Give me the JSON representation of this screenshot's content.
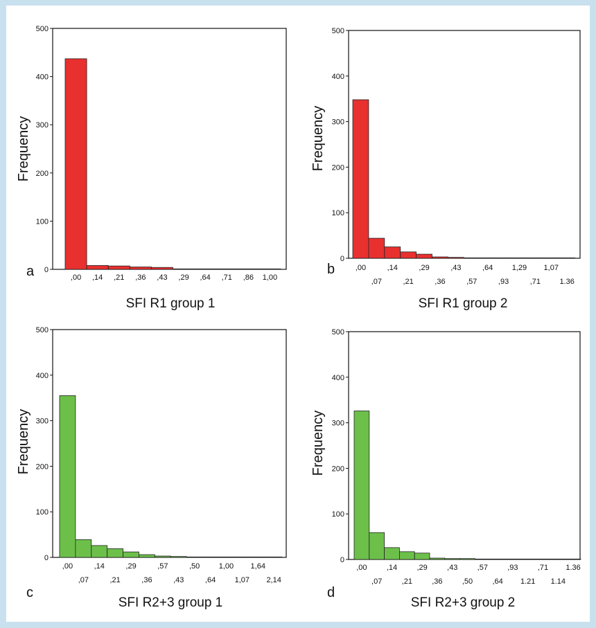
{
  "panels": [
    {
      "letter": "a",
      "ylabel": "Frequency",
      "xlabel": "SFI R1 group 1",
      "bar_color": "#e8302f",
      "tick_rows": 1,
      "y_ticks": [
        "0",
        "100",
        "200",
        "300",
        "400",
        "500"
      ],
      "x_tick_labels": [
        ",00",
        ",14",
        ",21",
        ",36",
        ",43",
        ",29",
        ",64",
        ",71",
        ",86",
        "1,00"
      ]
    },
    {
      "letter": "b",
      "ylabel": "Frequency",
      "xlabel": "SFI R1 group 2",
      "bar_color": "#e8302f",
      "tick_rows": 2,
      "y_ticks": [
        "0",
        "100",
        "200",
        "300",
        "400",
        "500"
      ],
      "x_tick_labels": [
        ",00",
        ",07",
        ",14",
        ",21",
        ",29",
        ",36",
        ",43",
        ",57",
        ",64",
        ",93",
        "1,29",
        ",71",
        "1,07",
        "1.36"
      ]
    },
    {
      "letter": "c",
      "ylabel": "Frequency",
      "xlabel": "SFI R2+3 group 1",
      "bar_color": "#6cc04a",
      "tick_rows": 2,
      "y_ticks": [
        "0",
        "100",
        "200",
        "300",
        "400",
        "500"
      ],
      "x_tick_labels": [
        ",00",
        ",07",
        ",14",
        ",21",
        ",29",
        ",36",
        ",57",
        ",43",
        ",50",
        ",64",
        "1,00",
        "1,07",
        "1,64",
        "2,14"
      ]
    },
    {
      "letter": "d",
      "ylabel": "Frequency",
      "xlabel": "SFI R2+3 group 2",
      "bar_color": "#6cc04a",
      "tick_rows": 2,
      "y_ticks": [
        "0",
        "100",
        "200",
        "300",
        "400",
        "500"
      ],
      "x_tick_labels": [
        ",00",
        ",07",
        ",14",
        ",21",
        ",29",
        ",36",
        ",43",
        ",50",
        ",57",
        ",64",
        ",93",
        "1.21",
        ",71",
        "1.14",
        "1.36"
      ]
    }
  ],
  "chart_data": [
    {
      "type": "bar",
      "categories": [
        ",00",
        ",14",
        ",21",
        ",36",
        ",43",
        ",29",
        ",64",
        ",71",
        ",86",
        "1,00"
      ],
      "values": [
        437,
        8,
        7,
        5,
        4,
        1,
        1,
        1,
        1,
        1
      ],
      "xlabel": "SFI R1 group 1",
      "ylabel": "Frequency",
      "ylim": [
        0,
        500
      ]
    },
    {
      "type": "bar",
      "categories": [
        ",00",
        ",07",
        ",14",
        ",21",
        ",29",
        ",36",
        ",43",
        ",57",
        ",64",
        ",93",
        "1,29",
        ",71",
        "1,07",
        "1.36"
      ],
      "values": [
        348,
        44,
        25,
        14,
        9,
        3,
        2,
        1,
        1,
        1,
        1,
        1,
        1,
        1
      ],
      "xlabel": "SFI R1 group 2",
      "ylabel": "Frequency",
      "ylim": [
        0,
        500
      ]
    },
    {
      "type": "bar",
      "categories": [
        ",00",
        ",07",
        ",14",
        ",21",
        ",29",
        ",36",
        ",57",
        ",43",
        ",50",
        ",64",
        "1,00",
        "1,07",
        "1,64",
        "2,14"
      ],
      "values": [
        355,
        39,
        26,
        19,
        12,
        6,
        3,
        2,
        1,
        1,
        1,
        1,
        1,
        1
      ],
      "xlabel": "SFI R2+3 group 1",
      "ylabel": "Frequency",
      "ylim": [
        0,
        500
      ]
    },
    {
      "type": "bar",
      "categories": [
        ",00",
        ",07",
        ",14",
        ",21",
        ",29",
        ",36",
        ",43",
        ",50",
        ",57",
        ",64",
        ",93",
        "1.21",
        ",71",
        "1.14",
        "1.36"
      ],
      "values": [
        326,
        59,
        26,
        17,
        14,
        3,
        2,
        2,
        1,
        1,
        1,
        1,
        1,
        1,
        1
      ],
      "xlabel": "SFI R2+3 group 2",
      "ylabel": "Frequency",
      "ylim": [
        0,
        500
      ]
    }
  ]
}
